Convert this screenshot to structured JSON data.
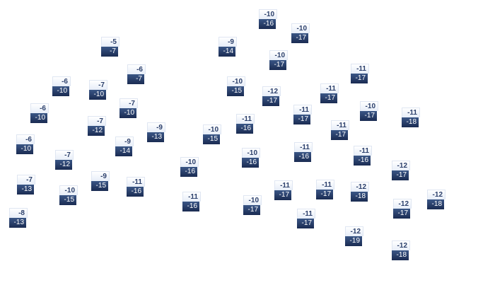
{
  "markers": [
    {
      "high": "-10",
      "low": "-16"
    },
    {
      "high": "-10",
      "low": "-17"
    },
    {
      "high": "-5",
      "low": "-7"
    },
    {
      "high": "-9",
      "low": "-14"
    },
    {
      "high": "-10",
      "low": "-17"
    },
    {
      "high": "-11",
      "low": "-17"
    },
    {
      "high": "-6",
      "low": "-7"
    },
    {
      "high": "-6",
      "low": "-10"
    },
    {
      "high": "-7",
      "low": "-10"
    },
    {
      "high": "-10",
      "low": "-15"
    },
    {
      "high": "-12",
      "low": "-17"
    },
    {
      "high": "-11",
      "low": "-17"
    },
    {
      "high": "-6",
      "low": "-10"
    },
    {
      "high": "-7",
      "low": "-10"
    },
    {
      "high": "-11",
      "low": "-17"
    },
    {
      "high": "-10",
      "low": "-17"
    },
    {
      "high": "-11",
      "low": "-18"
    },
    {
      "high": "-11",
      "low": "-16"
    },
    {
      "high": "-7",
      "low": "-12"
    },
    {
      "high": "-11",
      "low": "-17"
    },
    {
      "high": "-9",
      "low": "-13"
    },
    {
      "high": "-10",
      "low": "-15"
    },
    {
      "high": "-6",
      "low": "-10"
    },
    {
      "high": "-9",
      "low": "-14"
    },
    {
      "high": "-11",
      "low": "-16"
    },
    {
      "high": "-11",
      "low": "-16"
    },
    {
      "high": "-10",
      "low": "-16"
    },
    {
      "high": "-7",
      "low": "-12"
    },
    {
      "high": "-10",
      "low": "-16"
    },
    {
      "high": "-12",
      "low": "-17"
    },
    {
      "high": "-9",
      "low": "-15"
    },
    {
      "high": "-7",
      "low": "-13"
    },
    {
      "high": "-11",
      "low": "-16"
    },
    {
      "high": "-11",
      "low": "-17"
    },
    {
      "high": "-11",
      "low": "-17"
    },
    {
      "high": "-12",
      "low": "-18"
    },
    {
      "high": "-10",
      "low": "-15"
    },
    {
      "high": "-12",
      "low": "-18"
    },
    {
      "high": "-11",
      "low": "-16"
    },
    {
      "high": "-10",
      "low": "-17"
    },
    {
      "high": "-12",
      "low": "-17"
    },
    {
      "high": "-8",
      "low": "-13"
    },
    {
      "high": "-11",
      "low": "-17"
    },
    {
      "high": "-12",
      "low": "-19"
    },
    {
      "high": "-12",
      "low": "-18"
    }
  ],
  "colors": {
    "high_bg": "#eef2fa",
    "high_text": "#2b3f6b",
    "low_bg": "#243a66",
    "low_text": "#ffffff"
  }
}
